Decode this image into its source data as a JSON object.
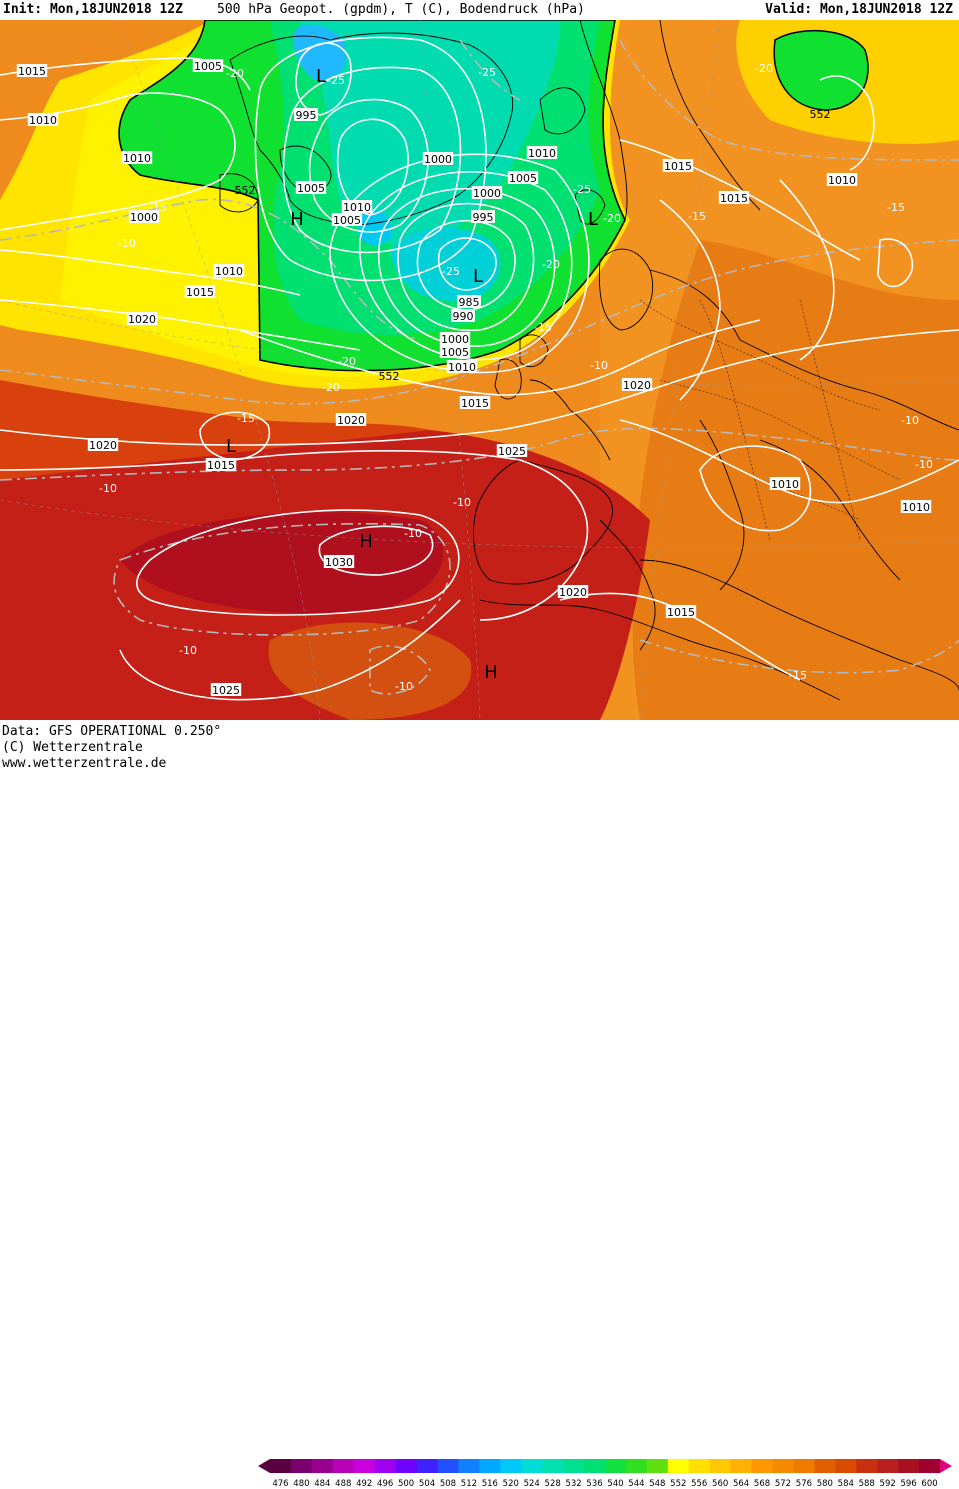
{
  "header": {
    "init": "Init: Mon,18JUN2018 12Z",
    "title": "500 hPa Geopot. (gpdm), T (C), Bodendruck (hPa)",
    "valid": "Valid: Mon,18JUN2018 12Z"
  },
  "footer": {
    "data_line": "Data: GFS OPERATIONAL 0.250°",
    "copyright_line": "(C) Wetterzentrale",
    "url_line": "www.wetterzentrale.de"
  },
  "legend": {
    "values": [
      "476",
      "480",
      "484",
      "488",
      "492",
      "496",
      "500",
      "504",
      "508",
      "512",
      "516",
      "520",
      "524",
      "528",
      "532",
      "536",
      "540",
      "544",
      "548",
      "552",
      "556",
      "560",
      "564",
      "568",
      "572",
      "576",
      "580",
      "584",
      "588",
      "592",
      "596",
      "600"
    ],
    "colors": [
      "#5a0040",
      "#7a0070",
      "#9a0090",
      "#b800b8",
      "#c800e0",
      "#a000f0",
      "#7000ff",
      "#4020ff",
      "#2050ff",
      "#1080ff",
      "#00a8ff",
      "#00c8f8",
      "#00dcd8",
      "#00e0b0",
      "#00e090",
      "#00e070",
      "#10e040",
      "#30e020",
      "#60e010",
      "#ffff00",
      "#ffe000",
      "#ffc800",
      "#ffb000",
      "#ff9800",
      "#f58a00",
      "#ee7a00",
      "#e06000",
      "#d84a00",
      "#c83010",
      "#b82020",
      "#a81020",
      "#a00030"
    ],
    "overflow_color": "#e0007a"
  },
  "map_labels": {
    "pressure": [
      {
        "text": "1015"
      },
      {
        "text": "1010"
      },
      {
        "text": "1005"
      },
      {
        "text": "995"
      },
      {
        "text": "1000"
      },
      {
        "text": "1010"
      },
      {
        "text": "1005"
      },
      {
        "text": "1010"
      },
      {
        "text": "1005"
      },
      {
        "text": "1000"
      },
      {
        "text": "995"
      },
      {
        "text": "1010"
      },
      {
        "text": "1005"
      },
      {
        "text": "985"
      },
      {
        "text": "990"
      },
      {
        "text": "1000"
      },
      {
        "text": "1005"
      },
      {
        "text": "1010"
      },
      {
        "text": "1015"
      },
      {
        "text": "1015"
      },
      {
        "text": "1010"
      },
      {
        "text": "1015"
      },
      {
        "text": "1000"
      },
      {
        "text": "1010"
      },
      {
        "text": "1015"
      },
      {
        "text": "1020"
      },
      {
        "text": "1020"
      },
      {
        "text": "1015"
      },
      {
        "text": "1020"
      },
      {
        "text": "1025"
      },
      {
        "text": "1020"
      },
      {
        "text": "1010"
      },
      {
        "text": "1010"
      },
      {
        "text": "1030"
      },
      {
        "text": "1020"
      },
      {
        "text": "1015"
      },
      {
        "text": "1025"
      }
    ],
    "temperature": [
      {
        "text": "-20"
      },
      {
        "text": "-25"
      },
      {
        "text": "-25"
      },
      {
        "text": "-20"
      },
      {
        "text": "-15"
      },
      {
        "text": "-10"
      },
      {
        "text": "-25"
      },
      {
        "text": "-20"
      },
      {
        "text": "-20"
      },
      {
        "text": "-25"
      },
      {
        "text": "-20"
      },
      {
        "text": "-15"
      },
      {
        "text": "-15"
      },
      {
        "text": "-15"
      },
      {
        "text": "-10"
      },
      {
        "text": "-15"
      },
      {
        "text": "-10"
      },
      {
        "text": "-10"
      },
      {
        "text": "-10"
      },
      {
        "text": "-10"
      },
      {
        "text": "-10"
      },
      {
        "text": "-15"
      },
      {
        "text": "-10"
      },
      {
        "text": "-20"
      },
      {
        "text": "-10"
      }
    ],
    "geopotential": [
      {
        "text": "552"
      },
      {
        "text": "552"
      },
      {
        "text": "552"
      }
    ],
    "centers": [
      {
        "text": "L"
      },
      {
        "text": "H"
      },
      {
        "text": "L"
      },
      {
        "text": "L"
      },
      {
        "text": "L"
      },
      {
        "text": "H"
      },
      {
        "text": "H"
      }
    ]
  }
}
